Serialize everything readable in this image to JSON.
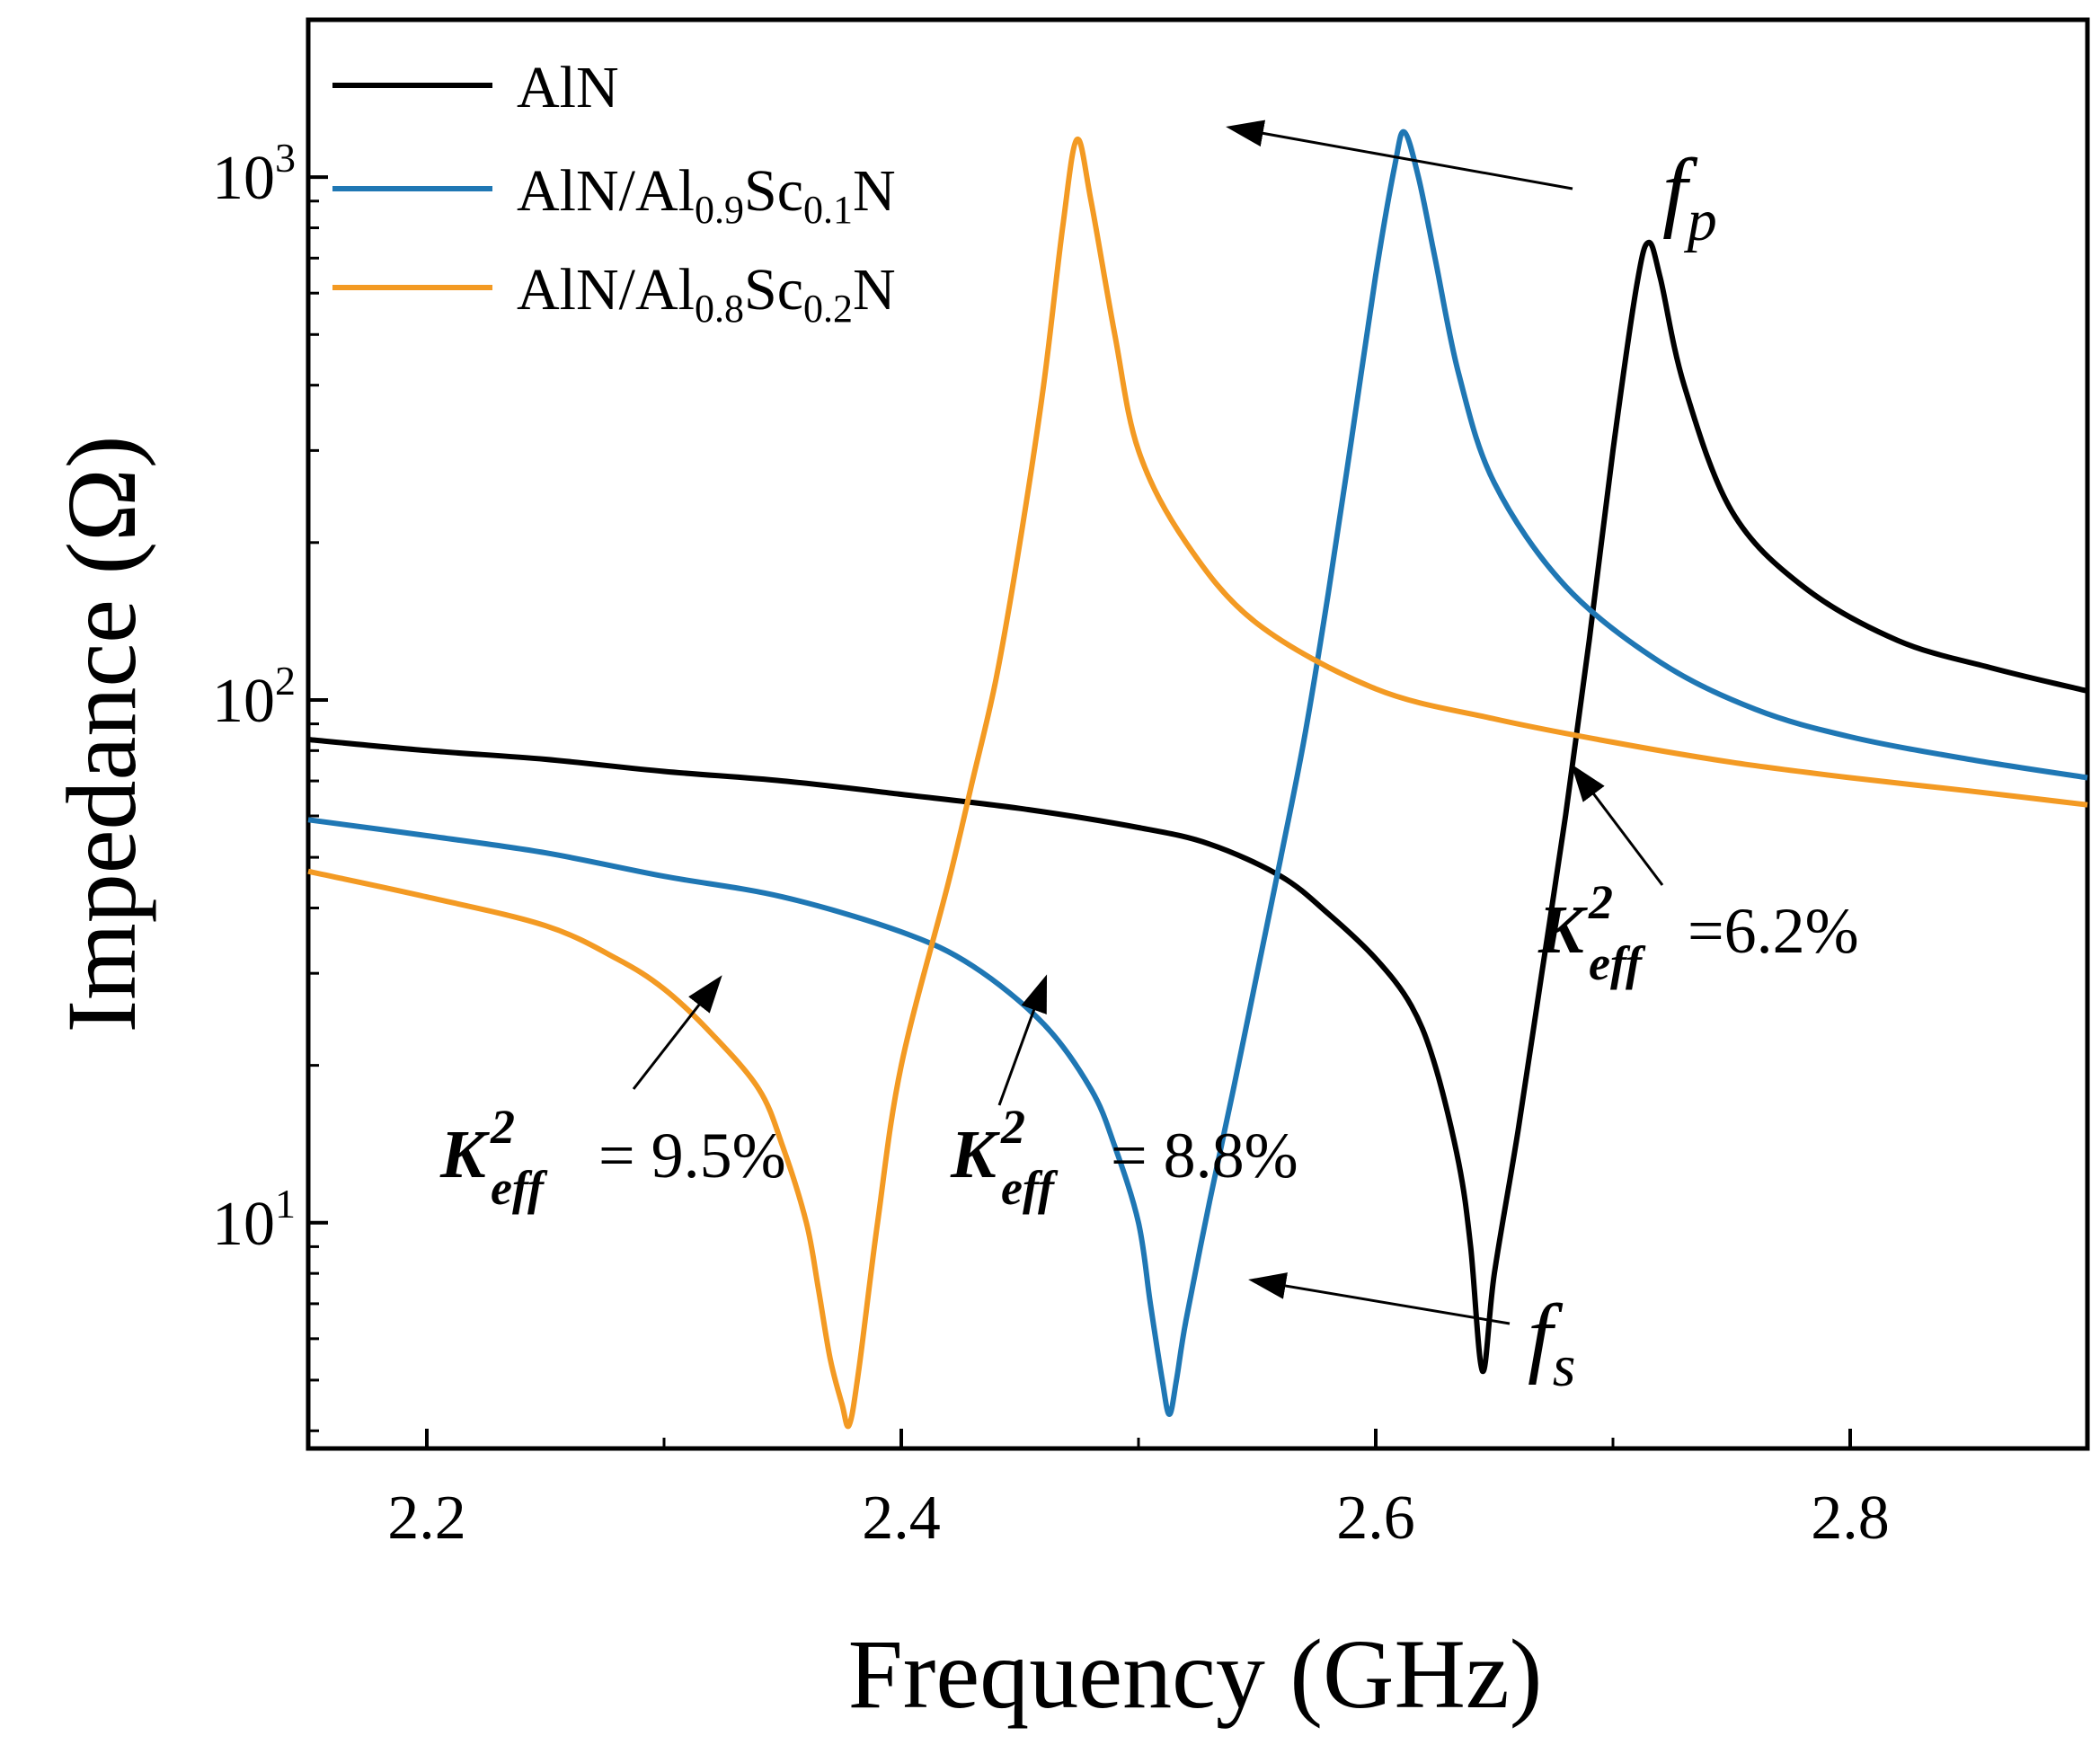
{
  "chart_data": {
    "type": "line",
    "xlabel": "Frequency (GHz)",
    "ylabel": "Impedance (Ω)",
    "xlim": [
      2.15,
      2.9
    ],
    "ylim": [
      3.7,
      2000
    ],
    "yscale": "log",
    "xticks": [
      2.2,
      2.4,
      2.6,
      2.8
    ],
    "xtick_labels": [
      "2.2",
      "2.4",
      "2.6",
      "2.8"
    ],
    "x_minor_ticks": [
      2.3,
      2.5,
      2.7
    ],
    "yticks": [
      10,
      100,
      1000
    ],
    "ytick_labels": [
      {
        "base": "10",
        "exp": "1"
      },
      {
        "base": "10",
        "exp": "2"
      },
      {
        "base": "10",
        "exp": "3"
      }
    ],
    "grid": false,
    "legend_position": "top-left",
    "series": [
      {
        "name": "AlN",
        "legend": {
          "parts": [
            {
              "t": "AlN"
            }
          ]
        },
        "color": "#000000",
        "points": [
          [
            2.15,
            84
          ],
          [
            2.2,
            80
          ],
          [
            2.25,
            77
          ],
          [
            2.3,
            73
          ],
          [
            2.35,
            70
          ],
          [
            2.4,
            66
          ],
          [
            2.45,
            62
          ],
          [
            2.5,
            57
          ],
          [
            2.53,
            53
          ],
          [
            2.56,
            46
          ],
          [
            2.58,
            39
          ],
          [
            2.6,
            32
          ],
          [
            2.615,
            26
          ],
          [
            2.625,
            20
          ],
          [
            2.635,
            13
          ],
          [
            2.64,
            9
          ],
          [
            2.645,
            5.2
          ],
          [
            2.65,
            8
          ],
          [
            2.66,
            15
          ],
          [
            2.67,
            30
          ],
          [
            2.68,
            60
          ],
          [
            2.69,
            130
          ],
          [
            2.7,
            300
          ],
          [
            2.71,
            620
          ],
          [
            2.715,
            750
          ],
          [
            2.72,
            640
          ],
          [
            2.73,
            400
          ],
          [
            2.75,
            230
          ],
          [
            2.78,
            165
          ],
          [
            2.82,
            130
          ],
          [
            2.86,
            115
          ],
          [
            2.9,
            104
          ]
        ]
      },
      {
        "name": "AlN/Al0.9Sc0.1N",
        "legend": {
          "parts": [
            {
              "t": "AlN/Al"
            },
            {
              "t": "0.9",
              "sub": true
            },
            {
              "t": "Sc"
            },
            {
              "t": "0.1",
              "sub": true
            },
            {
              "t": "N"
            }
          ]
        },
        "color": "#1f77b4",
        "points": [
          [
            2.15,
            59
          ],
          [
            2.2,
            55
          ],
          [
            2.25,
            51
          ],
          [
            2.3,
            46
          ],
          [
            2.35,
            42
          ],
          [
            2.4,
            36
          ],
          [
            2.43,
            31
          ],
          [
            2.46,
            24
          ],
          [
            2.48,
            18
          ],
          [
            2.49,
            14
          ],
          [
            2.5,
            10
          ],
          [
            2.505,
            7
          ],
          [
            2.51,
            5
          ],
          [
            2.513,
            4.3
          ],
          [
            2.516,
            5
          ],
          [
            2.52,
            6.5
          ],
          [
            2.53,
            11
          ],
          [
            2.54,
            18
          ],
          [
            2.55,
            30
          ],
          [
            2.56,
            50
          ],
          [
            2.57,
            85
          ],
          [
            2.58,
            160
          ],
          [
            2.59,
            320
          ],
          [
            2.6,
            650
          ],
          [
            2.608,
            1050
          ],
          [
            2.612,
            1220
          ],
          [
            2.618,
            1000
          ],
          [
            2.625,
            700
          ],
          [
            2.635,
            420
          ],
          [
            2.65,
            260
          ],
          [
            2.68,
            165
          ],
          [
            2.72,
            118
          ],
          [
            2.76,
            96
          ],
          [
            2.8,
            85
          ],
          [
            2.85,
            77
          ],
          [
            2.9,
            71
          ]
        ]
      },
      {
        "name": "AlN/Al0.8Sc0.2N",
        "legend": {
          "parts": [
            {
              "t": "AlN/Al"
            },
            {
              "t": "0.8",
              "sub": true
            },
            {
              "t": "Sc"
            },
            {
              "t": "0.2",
              "sub": true
            },
            {
              "t": "N"
            }
          ]
        },
        "color": "#f39a23",
        "points": [
          [
            2.15,
            47
          ],
          [
            2.2,
            42
          ],
          [
            2.25,
            37
          ],
          [
            2.28,
            32
          ],
          [
            2.3,
            28
          ],
          [
            2.32,
            23
          ],
          [
            2.34,
            18
          ],
          [
            2.35,
            14
          ],
          [
            2.36,
            10
          ],
          [
            2.365,
            7.5
          ],
          [
            2.37,
            5.5
          ],
          [
            2.375,
            4.5
          ],
          [
            2.378,
            4.1
          ],
          [
            2.382,
            5.2
          ],
          [
            2.39,
            10
          ],
          [
            2.4,
            20
          ],
          [
            2.42,
            45
          ],
          [
            2.43,
            70
          ],
          [
            2.44,
            110
          ],
          [
            2.45,
            200
          ],
          [
            2.46,
            400
          ],
          [
            2.468,
            800
          ],
          [
            2.474,
            1180
          ],
          [
            2.48,
            900
          ],
          [
            2.49,
            500
          ],
          [
            2.5,
            300
          ],
          [
            2.52,
            200
          ],
          [
            2.55,
            140
          ],
          [
            2.6,
            105
          ],
          [
            2.65,
            92
          ],
          [
            2.7,
            83
          ],
          [
            2.75,
            76
          ],
          [
            2.8,
            71
          ],
          [
            2.85,
            67
          ],
          [
            2.9,
            63
          ]
        ]
      }
    ],
    "annotations": {
      "k_blue": {
        "k": "K",
        "sup": "2",
        "sub": "eff",
        "value": "= 8.8%"
      },
      "k_orange": {
        "k": "K",
        "sup": "2",
        "sub": "eff",
        "value": "= 9.5%"
      },
      "k_black": {
        "k": "K",
        "sup": "2",
        "sub": "eff",
        "value": "=6.2%"
      },
      "fp": {
        "main": "f",
        "sub": "p"
      },
      "fs": {
        "main": "f",
        "sub": "s"
      }
    }
  }
}
